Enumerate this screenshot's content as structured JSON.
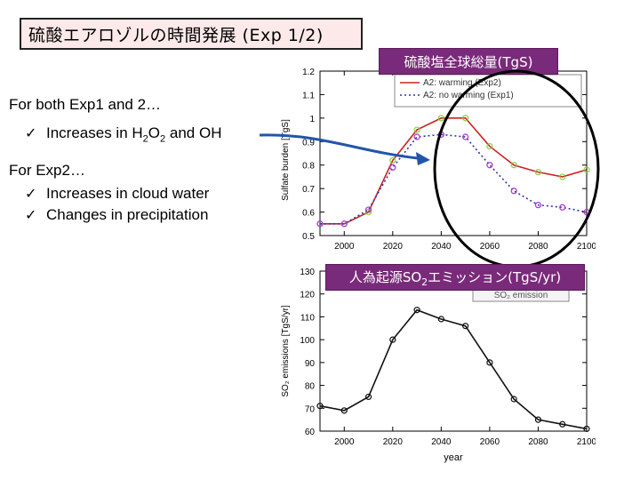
{
  "header": {
    "title": "硫酸エアロゾルの時間発展 (Exp 1/2)"
  },
  "labels": {
    "sulfate_total": "硫酸塩全球総量(TgS)",
    "emission_prefix": "人為起源SO",
    "emission_sub": "2",
    "emission_suffix": "エミッション(TgS/yr)"
  },
  "bullets": {
    "both_heading": "For both Exp1 and 2…",
    "both_item_prefix": "Increases in H",
    "both_item_sub1": "2",
    "both_item_mid": "O",
    "both_item_sub2": "2",
    "both_item_suffix": " and OH",
    "exp2_heading": "For Exp2…",
    "exp2_item1": "Increases in cloud water",
    "exp2_item2": "Changes in precipitation",
    "check_glyph": "✓"
  },
  "chart_data": [
    {
      "type": "line",
      "ylabel": "Sulfate burden [TgS]",
      "x": [
        1990,
        2000,
        2010,
        2020,
        2030,
        2040,
        2050,
        2060,
        2070,
        2080,
        2090,
        2100
      ],
      "xticks": [
        "2000",
        "2020",
        "2040",
        "2060",
        "2080",
        "2100"
      ],
      "yticks": [
        "0.5",
        "0.6",
        "0.7",
        "0.8",
        "0.9",
        "1",
        "1.1",
        "1.2"
      ],
      "ylim": [
        0.5,
        1.2
      ],
      "xlim": [
        1990,
        2100
      ],
      "legend_position": "top-right",
      "series": [
        {
          "name": "A2:    warming (Exp2)",
          "color": "#cc2222",
          "marker_color": "#88cc44",
          "style": "solid",
          "values": [
            0.55,
            0.55,
            0.6,
            0.82,
            0.95,
            1.0,
            1.0,
            0.88,
            0.8,
            0.77,
            0.75,
            0.78
          ]
        },
        {
          "name": "A2: no warming (Exp1)",
          "color": "#3333aa",
          "marker_color": "#aa33cc",
          "style": "dotted",
          "values": [
            0.55,
            0.55,
            0.61,
            0.79,
            0.92,
            0.93,
            0.92,
            0.8,
            0.69,
            0.63,
            0.62,
            0.6
          ]
        }
      ]
    },
    {
      "type": "line",
      "xlabel": "year",
      "ylabel": "SO₂ emissions [TgS/yr]",
      "x": [
        1990,
        2000,
        2010,
        2020,
        2030,
        2040,
        2050,
        2060,
        2070,
        2080,
        2090,
        2100
      ],
      "xticks": [
        "2000",
        "2020",
        "2040",
        "2060",
        "2080",
        "2100"
      ],
      "yticks": [
        "60",
        "70",
        "80",
        "90",
        "100",
        "110",
        "120",
        "130"
      ],
      "ylim": [
        60,
        130
      ],
      "xlim": [
        1990,
        2100
      ],
      "legend_partial": "SO₂ emission",
      "series": [
        {
          "name": "SO₂ emission",
          "color": "#111111",
          "values": [
            71,
            69,
            75,
            100,
            113,
            109,
            106,
            90,
            74,
            65,
            63,
            61
          ]
        }
      ]
    }
  ]
}
